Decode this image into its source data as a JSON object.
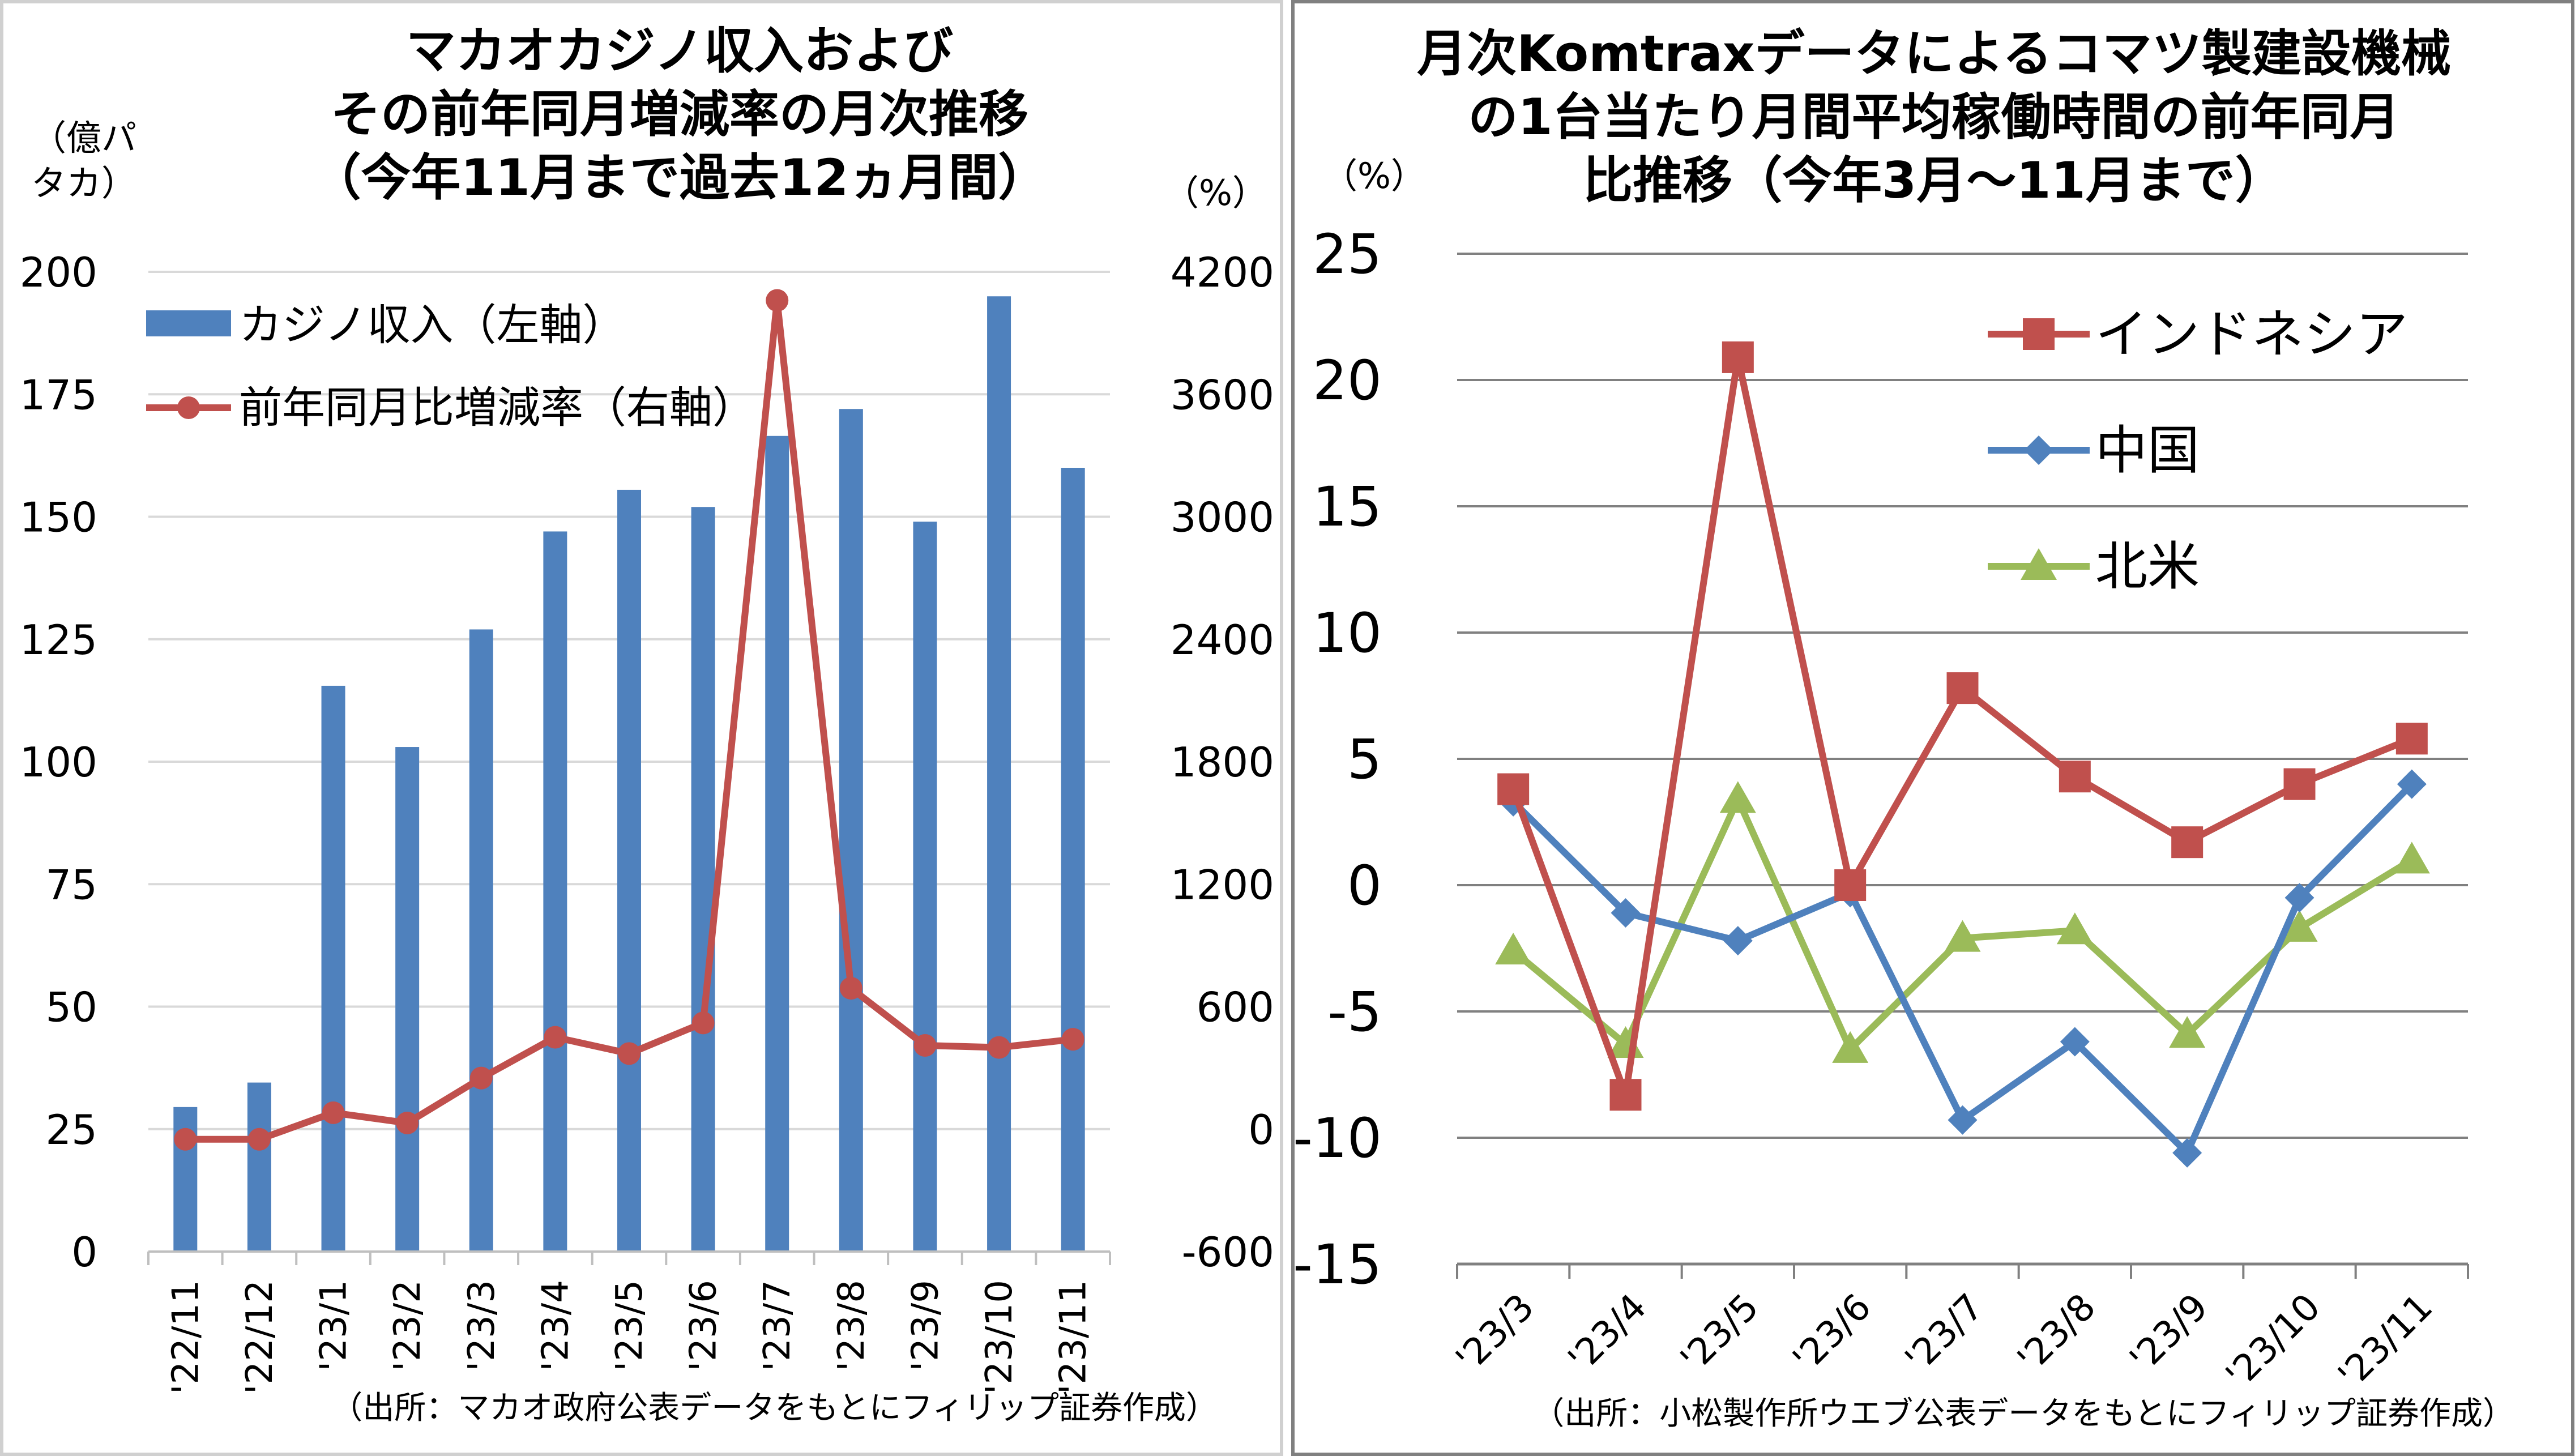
{
  "chart_data": [
    {
      "type": "bar",
      "title_lines": [
        "マカオカジノ収入および",
        "その前年同月増減率の月次推移",
        "（今年11月まで過去12ヵ月間）"
      ],
      "y_unit_left_lines": [
        "（億パ",
        "タカ）"
      ],
      "y_unit_right": "（%）",
      "categories": [
        "'22/11",
        "'22/12",
        "'23/1",
        "'23/2",
        "'23/3",
        "'23/4",
        "'23/5",
        "'23/6",
        "'23/7",
        "'23/8",
        "'23/9",
        "'23/10",
        "'23/11"
      ],
      "ylim_left": [
        0,
        200
      ],
      "yticks_left": [
        "0",
        "25",
        "50",
        "75",
        "100",
        "125",
        "150",
        "175",
        "200"
      ],
      "ylim_right": [
        -600,
        4200
      ],
      "yticks_right": [
        "-600",
        "0",
        "600",
        "1200",
        "1800",
        "2400",
        "3000",
        "3600",
        "4200"
      ],
      "grid": true,
      "legend_position": "top-left",
      "series": [
        {
          "name": "カジノ収入（左軸）",
          "type": "bar",
          "axis": "left",
          "color": "#4F81BD",
          "values": [
            29.5,
            34.5,
            115.5,
            103,
            127,
            147,
            155.5,
            152,
            166.5,
            172,
            149,
            195,
            160
          ]
        },
        {
          "name": "前年同月比増減率（右軸）",
          "type": "line",
          "axis": "right",
          "color": "#C0504D",
          "values": [
            -50,
            -50,
            80,
            30,
            250,
            450,
            370,
            520,
            4060,
            690,
            410,
            400,
            440
          ]
        }
      ],
      "source": "（出所：マカオ政府公表データをもとにフィリップ証券作成）"
    },
    {
      "type": "line",
      "title_lines": [
        "月次Komtraxデータによるコマツ製建設機械",
        "の1台当たり月間平均稼働時間の前年同月",
        "比推移（今年3月～11月まで）"
      ],
      "y_unit": "（%）",
      "categories": [
        "'23/3",
        "'23/4",
        "'23/5",
        "'23/6",
        "'23/7",
        "'23/8",
        "'23/9",
        "'23/10",
        "'23/11"
      ],
      "ylim": [
        -15,
        25
      ],
      "yticks": [
        "-15",
        "-10",
        "-5",
        "0",
        "5",
        "10",
        "15",
        "20",
        "25"
      ],
      "negative_tick_color": "#FF0000",
      "grid": true,
      "legend_position": "top-right",
      "series": [
        {
          "name": "インドネシア",
          "color": "#C0504D",
          "marker": "square",
          "values": [
            3.8,
            -8.3,
            20.9,
            0,
            7.8,
            4.3,
            1.7,
            4.0,
            5.8
          ]
        },
        {
          "name": "中国",
          "color": "#4F81BD",
          "marker": "diamond",
          "values": [
            3.3,
            -1.1,
            -2.2,
            -0.3,
            -9.3,
            -6.2,
            -10.6,
            -0.5,
            4.0
          ]
        },
        {
          "name": "北米",
          "color": "#9BBB59",
          "marker": "triangle",
          "values": [
            -2.6,
            -6.3,
            3.4,
            -6.5,
            -2.1,
            -1.8,
            -5.9,
            -1.7,
            1.0
          ]
        }
      ],
      "source": "（出所：小松製作所ウエブ公表データをもとにフィリップ証券作成）"
    }
  ]
}
